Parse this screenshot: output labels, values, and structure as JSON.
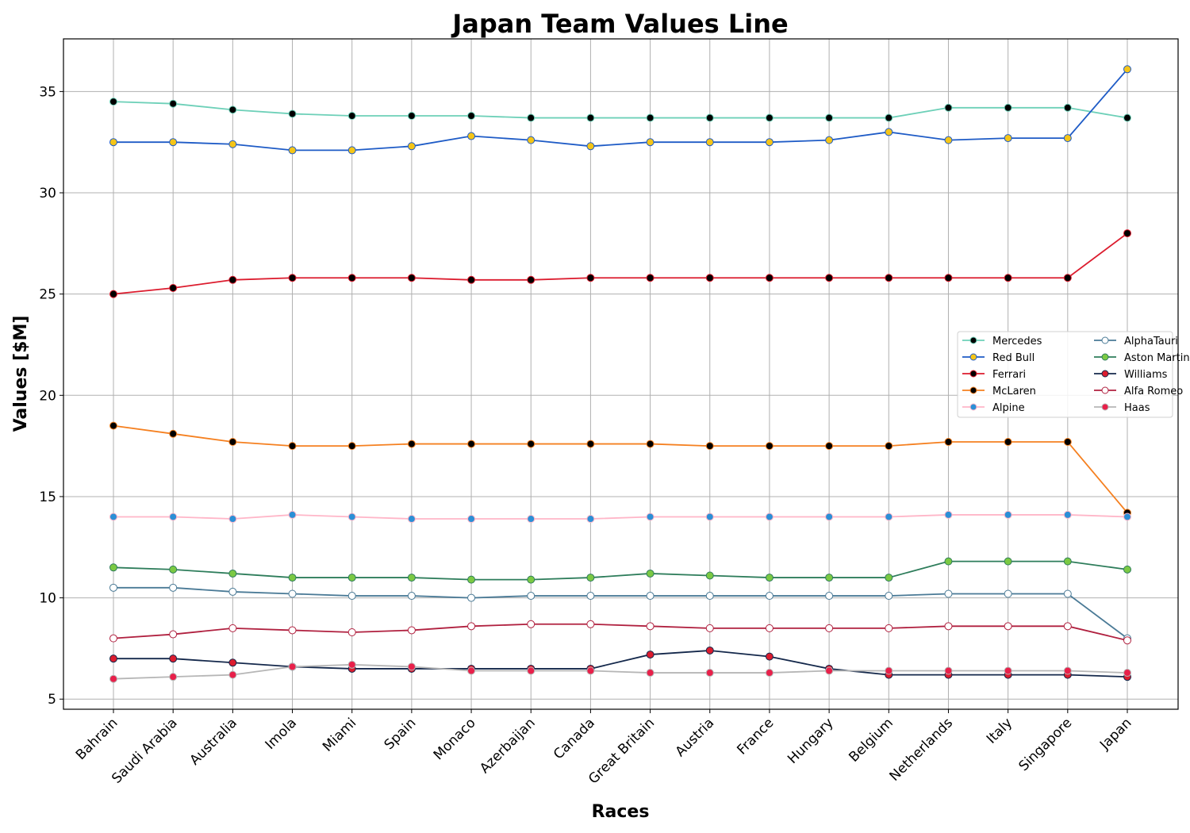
{
  "chart_data": {
    "type": "line",
    "title": "Japan Team Values Line",
    "xlabel": "Races",
    "ylabel": "Values [$M]",
    "ylim": [
      4.5,
      37.6
    ],
    "yticks": [
      5,
      10,
      15,
      20,
      25,
      30,
      35
    ],
    "grid": true,
    "legend_position": "center-right",
    "categories": [
      "Bahrain",
      "Saudi Arabia",
      "Australia",
      "Imola",
      "Miami",
      "Spain",
      "Monaco",
      "Azerbaijan",
      "Canada",
      "Great Britain",
      "Austria",
      "France",
      "Hungary",
      "Belgium",
      "Netherlands",
      "Italy",
      "Singapore",
      "Japan"
    ],
    "series": [
      {
        "name": "Mercedes",
        "color": "#6dd0b8",
        "marker_fill": "#000000",
        "marker_edge": "#6dd0b8",
        "values": [
          34.5,
          34.4,
          34.1,
          33.9,
          33.8,
          33.8,
          33.8,
          33.7,
          33.7,
          33.7,
          33.7,
          33.7,
          33.7,
          33.7,
          34.2,
          34.2,
          34.2,
          33.7
        ]
      },
      {
        "name": "Red Bull",
        "color": "#1e5bc6",
        "marker_fill": "#f5c518",
        "marker_edge": "#1e5bc6",
        "values": [
          32.5,
          32.5,
          32.4,
          32.1,
          32.1,
          32.3,
          32.8,
          32.6,
          32.3,
          32.5,
          32.5,
          32.5,
          32.6,
          33.0,
          32.6,
          32.7,
          32.7,
          36.1
        ]
      },
      {
        "name": "Ferrari",
        "color": "#dc1c2e",
        "marker_fill": "#000000",
        "marker_edge": "#dc1c2e",
        "values": [
          25.0,
          25.3,
          25.7,
          25.8,
          25.8,
          25.8,
          25.7,
          25.7,
          25.8,
          25.8,
          25.8,
          25.8,
          25.8,
          25.8,
          25.8,
          25.8,
          25.8,
          28.0
        ]
      },
      {
        "name": "McLaren",
        "color": "#f58020",
        "marker_fill": "#000000",
        "marker_edge": "#f58020",
        "values": [
          18.5,
          18.1,
          17.7,
          17.5,
          17.5,
          17.6,
          17.6,
          17.6,
          17.6,
          17.6,
          17.5,
          17.5,
          17.5,
          17.5,
          17.7,
          17.7,
          17.7,
          14.2
        ]
      },
      {
        "name": "Alpine",
        "color": "#ffb6c8",
        "marker_fill": "#2b8fd6",
        "marker_edge": "#ffb6c8",
        "values": [
          14.0,
          14.0,
          13.9,
          14.1,
          14.0,
          13.9,
          13.9,
          13.9,
          13.9,
          14.0,
          14.0,
          14.0,
          14.0,
          14.0,
          14.1,
          14.1,
          14.1,
          14.0
        ]
      },
      {
        "name": "AlphaTauri",
        "color": "#4a7a96",
        "marker_fill": "#ffffff",
        "marker_edge": "#4a7a96",
        "values": [
          10.5,
          10.5,
          10.3,
          10.2,
          10.1,
          10.1,
          10.0,
          10.1,
          10.1,
          10.1,
          10.1,
          10.1,
          10.1,
          10.1,
          10.2,
          10.2,
          10.2,
          8.0
        ]
      },
      {
        "name": "Aston Martin",
        "color": "#2e7d5b",
        "marker_fill": "#7bc943",
        "marker_edge": "#2e7d5b",
        "values": [
          11.5,
          11.4,
          11.2,
          11.0,
          11.0,
          11.0,
          10.9,
          10.9,
          11.0,
          11.2,
          11.1,
          11.0,
          11.0,
          11.0,
          11.8,
          11.8,
          11.8,
          11.4
        ]
      },
      {
        "name": "Williams",
        "color": "#14284b",
        "marker_fill": "#dc1c2e",
        "marker_edge": "#14284b",
        "values": [
          7.0,
          7.0,
          6.8,
          6.6,
          6.5,
          6.5,
          6.5,
          6.5,
          6.5,
          7.2,
          7.4,
          7.1,
          6.5,
          6.2,
          6.2,
          6.2,
          6.2,
          6.1
        ]
      },
      {
        "name": "Alfa Romeo",
        "color": "#b0203f",
        "marker_fill": "#ffffff",
        "marker_edge": "#b0203f",
        "values": [
          8.0,
          8.2,
          8.5,
          8.4,
          8.3,
          8.4,
          8.6,
          8.7,
          8.7,
          8.6,
          8.5,
          8.5,
          8.5,
          8.5,
          8.6,
          8.6,
          8.6,
          7.9
        ]
      },
      {
        "name": "Haas",
        "color": "#b6b6b6",
        "marker_fill": "#e8204a",
        "marker_edge": "#b6b6b6",
        "values": [
          6.0,
          6.1,
          6.2,
          6.6,
          6.7,
          6.6,
          6.4,
          6.4,
          6.4,
          6.3,
          6.3,
          6.3,
          6.4,
          6.4,
          6.4,
          6.4,
          6.4,
          6.3
        ]
      }
    ]
  }
}
